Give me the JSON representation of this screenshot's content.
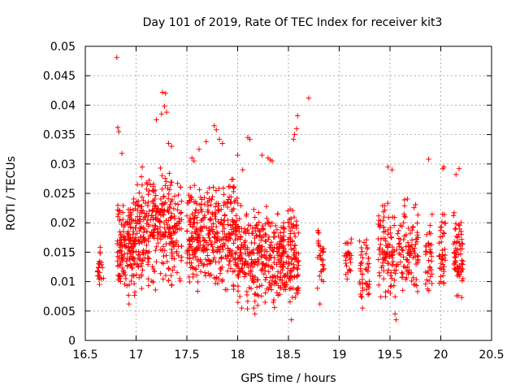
{
  "chart_data": {
    "type": "scatter",
    "title": "Day 101 of 2019, Rate Of TEC Index for receiver kit3",
    "xlabel": "GPS time / hours",
    "ylabel": "ROTI / TECUs",
    "xlim": [
      16.5,
      20.5
    ],
    "ylim": [
      0,
      0.05
    ],
    "xticks": [
      "16.5",
      "17",
      "17.5",
      "18",
      "18.5",
      "19",
      "19.5",
      "20",
      "20.5"
    ],
    "yticks": [
      "0",
      "0.005",
      "0.01",
      "0.015",
      "0.02",
      "0.025",
      "0.03",
      "0.035",
      "0.04",
      "0.045",
      "0.05"
    ],
    "grid": true,
    "marker": "+",
    "color": "#ff0000",
    "clusters": [
      {
        "x_start": 16.62,
        "x_end": 16.68,
        "y_low": 0.0085,
        "y_high": 0.017,
        "n": 24
      },
      {
        "x_start": 16.81,
        "x_end": 17.0,
        "y_low": 0.007,
        "y_high": 0.026,
        "n": 170
      },
      {
        "x_start": 17.0,
        "x_end": 17.45,
        "y_low": 0.0075,
        "y_high": 0.03,
        "n": 340
      },
      {
        "x_start": 17.5,
        "x_end": 18.0,
        "y_low": 0.008,
        "y_high": 0.028,
        "n": 380
      },
      {
        "x_start": 18.0,
        "x_end": 18.6,
        "y_low": 0.005,
        "y_high": 0.024,
        "n": 430
      },
      {
        "x_start": 18.78,
        "x_end": 18.85,
        "y_low": 0.007,
        "y_high": 0.02,
        "n": 30
      },
      {
        "x_start": 19.05,
        "x_end": 19.12,
        "y_low": 0.009,
        "y_high": 0.0185,
        "n": 28
      },
      {
        "x_start": 19.2,
        "x_end": 19.3,
        "y_low": 0.006,
        "y_high": 0.0185,
        "n": 45
      },
      {
        "x_start": 19.38,
        "x_end": 19.78,
        "y_low": 0.006,
        "y_high": 0.025,
        "n": 200
      },
      {
        "x_start": 19.85,
        "x_end": 19.92,
        "y_low": 0.0065,
        "y_high": 0.022,
        "n": 35
      },
      {
        "x_start": 19.98,
        "x_end": 20.05,
        "y_low": 0.008,
        "y_high": 0.024,
        "n": 40
      },
      {
        "x_start": 20.12,
        "x_end": 20.22,
        "y_low": 0.007,
        "y_high": 0.023,
        "n": 70
      }
    ],
    "points": [
      [
        16.81,
        0.0481
      ],
      [
        17.26,
        0.0422
      ],
      [
        17.29,
        0.042
      ],
      [
        17.28,
        0.0398
      ],
      [
        17.25,
        0.0385
      ],
      [
        17.3,
        0.0388
      ],
      [
        17.2,
        0.0375
      ],
      [
        16.82,
        0.0362
      ],
      [
        16.83,
        0.0355
      ],
      [
        17.77,
        0.0365
      ],
      [
        17.79,
        0.0358
      ],
      [
        18.7,
        0.0412
      ],
      [
        18.59,
        0.0382
      ],
      [
        18.58,
        0.036
      ],
      [
        18.56,
        0.035
      ],
      [
        18.55,
        0.0342
      ],
      [
        18.1,
        0.0345
      ],
      [
        18.12,
        0.0342
      ],
      [
        17.82,
        0.0342
      ],
      [
        17.85,
        0.0335
      ],
      [
        17.69,
        0.0338
      ],
      [
        17.62,
        0.0325
      ],
      [
        17.32,
        0.0335
      ],
      [
        17.35,
        0.033
      ],
      [
        18.24,
        0.0315
      ],
      [
        18.3,
        0.031
      ],
      [
        18.32,
        0.0307
      ],
      [
        18.34,
        0.0305
      ],
      [
        16.86,
        0.0318
      ],
      [
        17.55,
        0.031
      ],
      [
        17.57,
        0.0305
      ],
      [
        18.0,
        0.0315
      ],
      [
        19.48,
        0.0295
      ],
      [
        19.52,
        0.029
      ],
      [
        19.88,
        0.0308
      ],
      [
        20.02,
        0.0292
      ],
      [
        20.03,
        0.0295
      ],
      [
        20.18,
        0.0292
      ],
      [
        20.15,
        0.0282
      ],
      [
        18.05,
        0.029
      ],
      [
        18.53,
        0.0035
      ],
      [
        18.17,
        0.0045
      ],
      [
        18.16,
        0.0055
      ],
      [
        18.04,
        0.0055
      ],
      [
        19.56,
        0.0035
      ],
      [
        19.55,
        0.0045
      ],
      [
        19.23,
        0.0055
      ],
      [
        18.81,
        0.0062
      ],
      [
        16.93,
        0.0062
      ],
      [
        18.27,
        0.0065
      ]
    ]
  }
}
